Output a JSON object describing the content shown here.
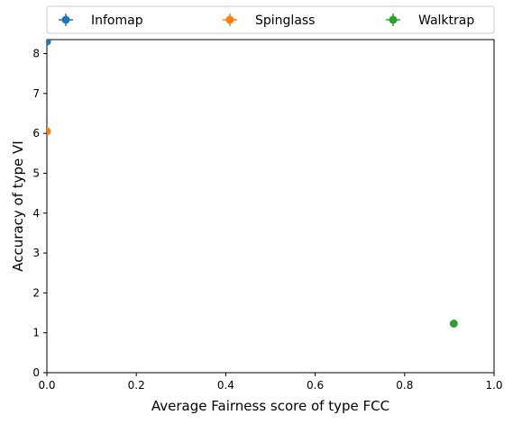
{
  "chart_data": {
    "type": "scatter",
    "xlabel": "Average Fairness score of type FCC",
    "ylabel": "Accuracy of type VI",
    "xlim": [
      0,
      1.0
    ],
    "ylim": [
      0,
      8.35
    ],
    "xticks": [
      "0.0",
      "0.2",
      "0.4",
      "0.6",
      "0.8",
      "1.0"
    ],
    "yticks": [
      "0",
      "1",
      "2",
      "3",
      "4",
      "5",
      "6",
      "7",
      "8"
    ],
    "legend_position": "top, above plot, horizontal",
    "grid": false,
    "series": [
      {
        "name": "Infomap",
        "color": "#1f77b4",
        "points": [
          {
            "x": 0.0,
            "y": 8.3
          }
        ]
      },
      {
        "name": "Spinglass",
        "color": "#ff7f0e",
        "points": [
          {
            "x": 0.0,
            "y": 6.05
          }
        ]
      },
      {
        "name": "Walktrap",
        "color": "#2ca02c",
        "points": [
          {
            "x": 0.91,
            "y": 1.23
          }
        ]
      }
    ]
  }
}
